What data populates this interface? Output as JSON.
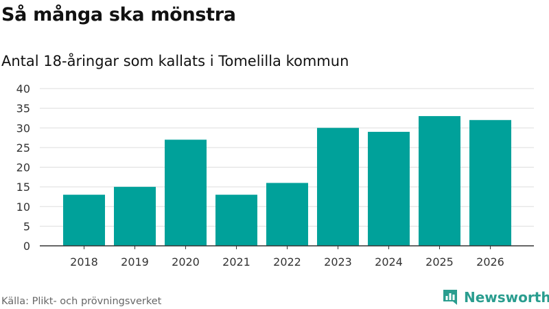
{
  "header": {
    "title": "Så många ska mönstra",
    "subtitle": "Antal 18-åringar som kallats i Tomelilla kommun"
  },
  "footer": {
    "source": "Källa: Plikt- och prövningsverket",
    "brand": "Newsworthy"
  },
  "colors": {
    "bar": "#00a19a",
    "grid": "#dddddd",
    "axis": "#333333",
    "brand": "#2a9d8f"
  },
  "icons": {
    "brand_logo": "bar-chart-document-icon"
  },
  "chart_data": {
    "type": "bar",
    "title": "Så många ska mönstra",
    "subtitle": "Antal 18-åringar som kallats i Tomelilla kommun",
    "categories": [
      "2018",
      "2019",
      "2020",
      "2021",
      "2022",
      "2023",
      "2024",
      "2025",
      "2026"
    ],
    "values": [
      13,
      15,
      27,
      13,
      16,
      30,
      29,
      33,
      32
    ],
    "yticks": [
      0,
      5,
      10,
      15,
      20,
      25,
      30,
      35,
      40
    ],
    "ylim": [
      0,
      40
    ],
    "xlabel": "",
    "ylabel": "",
    "grid": true,
    "legend": "none"
  }
}
